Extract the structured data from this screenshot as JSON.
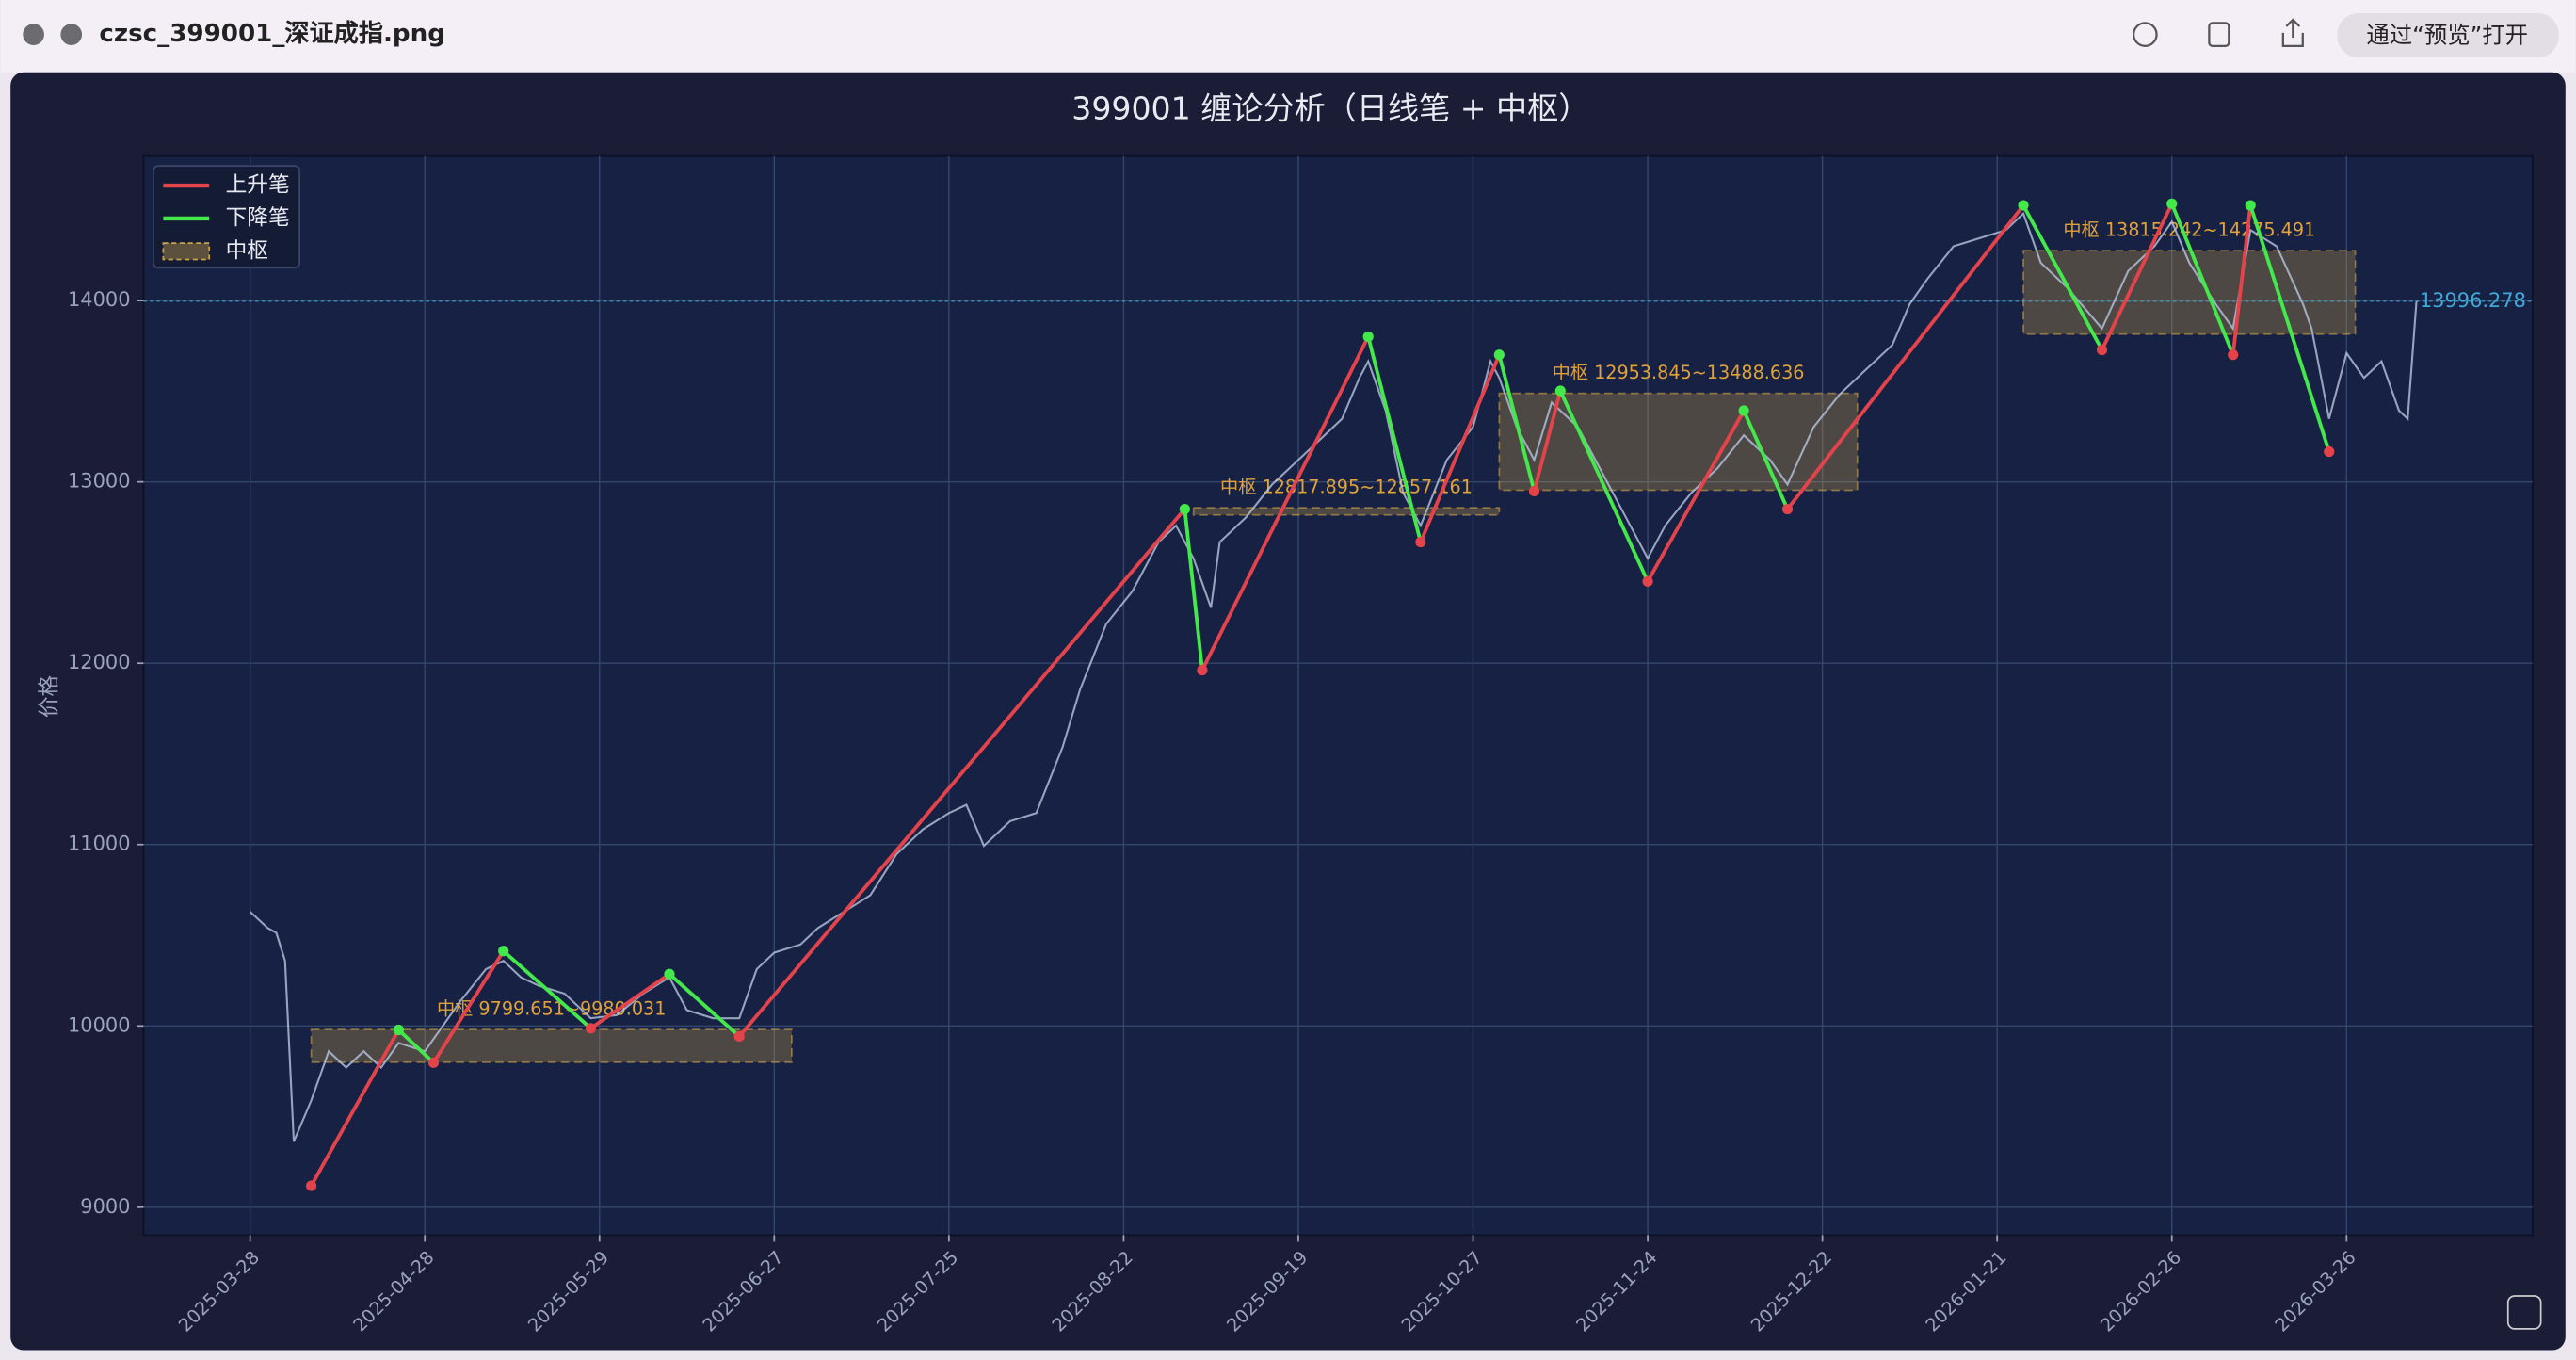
{
  "window": {
    "title": "czsc_399001_深证成指.png",
    "open_button": "通过“预览”打开"
  },
  "chart_data": {
    "type": "line",
    "title": "399001 缠论分析（日线笔 + 中枢）",
    "y_label": "价格",
    "xlim": [
      -12.2,
      261.3
    ],
    "xticks": [
      {
        "value": 0,
        "label": "2025-03-28"
      },
      {
        "value": 20,
        "label": "2025-04-28"
      },
      {
        "value": 40,
        "label": "2025-05-29"
      },
      {
        "value": 60,
        "label": "2025-06-27"
      },
      {
        "value": 80,
        "label": "2025-07-25"
      },
      {
        "value": 100,
        "label": "2025-08-22"
      },
      {
        "value": 120,
        "label": "2025-09-19"
      },
      {
        "value": 140,
        "label": "2025-10-27"
      },
      {
        "value": 160,
        "label": "2025-11-24"
      },
      {
        "value": 180,
        "label": "2025-12-22"
      },
      {
        "value": 200,
        "label": "2026-01-21"
      },
      {
        "value": 220,
        "label": "2026-02-26"
      },
      {
        "value": 240,
        "label": "2026-03-26"
      }
    ],
    "ylim": [
      8846,
      14797
    ],
    "yticks": [
      9000,
      10000,
      11000,
      12000,
      13000,
      14000
    ],
    "grid": true,
    "price": {
      "color": "#b8c6e0",
      "x": [
        0,
        2,
        3,
        4,
        5,
        7,
        9,
        11,
        13,
        15,
        17,
        20,
        22,
        24,
        27,
        29,
        31,
        33,
        36,
        39,
        42,
        45,
        48,
        50,
        53,
        56,
        58,
        60,
        63,
        65,
        68,
        71,
        74,
        77,
        80,
        82,
        84,
        87,
        90,
        93,
        95,
        98,
        101,
        104,
        106,
        108,
        110,
        111,
        114,
        117,
        120,
        123,
        125,
        127,
        128,
        130,
        132,
        134,
        137,
        140,
        142,
        143,
        145,
        147,
        149,
        152,
        155,
        158,
        160,
        162,
        165,
        168,
        171,
        174,
        176,
        179,
        182,
        185,
        188,
        190,
        192,
        195,
        198,
        201,
        203,
        205,
        208,
        212,
        215,
        218,
        220,
        222,
        225,
        227,
        229,
        232,
        235,
        236,
        238,
        240,
        242,
        244,
        246,
        247,
        248
      ],
      "values": [
        10630,
        10540,
        10513,
        10359,
        9362,
        9589,
        9860,
        9770,
        9860,
        9770,
        9906,
        9860,
        9996,
        10132,
        10313,
        10359,
        10268,
        10223,
        10178,
        10042,
        10060,
        10178,
        10268,
        10087,
        10042,
        10042,
        10313,
        10404,
        10449,
        10540,
        10630,
        10721,
        10947,
        11083,
        11174,
        11219,
        10993,
        11129,
        11174,
        11536,
        11853,
        12216,
        12397,
        12668,
        12759,
        12578,
        12306,
        12668,
        12804,
        12986,
        13121,
        13257,
        13348,
        13574,
        13665,
        13393,
        12940,
        12759,
        13121,
        13303,
        13665,
        13574,
        13303,
        13121,
        13438,
        13303,
        13031,
        12759,
        12578,
        12759,
        12940,
        13076,
        13257,
        13121,
        12986,
        13303,
        13484,
        13620,
        13755,
        13982,
        14118,
        14299,
        14344,
        14389,
        14480,
        14208,
        14072,
        13846,
        14163,
        14299,
        14435,
        14208,
        13982,
        13846,
        14389,
        14299,
        13982,
        13846,
        13348,
        13710,
        13574,
        13665,
        13393,
        13348,
        13996
      ]
    },
    "bi": {
      "up_color": "#e5434b",
      "down_color": "#43e84b",
      "x": [
        7,
        17,
        21,
        29,
        39,
        48,
        56,
        107,
        109,
        128,
        134,
        143,
        147,
        150,
        160,
        171,
        176,
        203,
        212,
        220,
        227,
        229,
        238
      ],
      "values": [
        9118,
        9978,
        9797,
        10413,
        9987,
        10286,
        9942,
        12850,
        11962,
        13801,
        12668,
        13701,
        12949,
        13502,
        12451,
        13393,
        12850,
        14525,
        13728,
        14534,
        13701,
        14525,
        13167
      ]
    },
    "zhongshu": {
      "color": "#c9a24a",
      "boxes": [
        {
          "start": 7,
          "end": 62,
          "low": 9799.651,
          "high": 9980.031,
          "label": "中枢 9799.651~9980.031"
        },
        {
          "start": 108,
          "end": 143,
          "low": 12817.895,
          "high": 12857.161,
          "label": "中枢 12817.895~12857.161"
        },
        {
          "start": 143,
          "end": 184,
          "low": 12953.845,
          "high": 13488.636,
          "label": "中枢 12953.845~13488.636"
        },
        {
          "start": 203,
          "end": 241,
          "low": 13815.242,
          "high": 14275.491,
          "label": "中枢 13815.242~14275.491"
        }
      ]
    },
    "last_price": {
      "value": 13996.278,
      "color": "#3fa9d8"
    },
    "legend": [
      "上升笔",
      "下降笔",
      "中枢"
    ],
    "legend_position": "upper left"
  }
}
